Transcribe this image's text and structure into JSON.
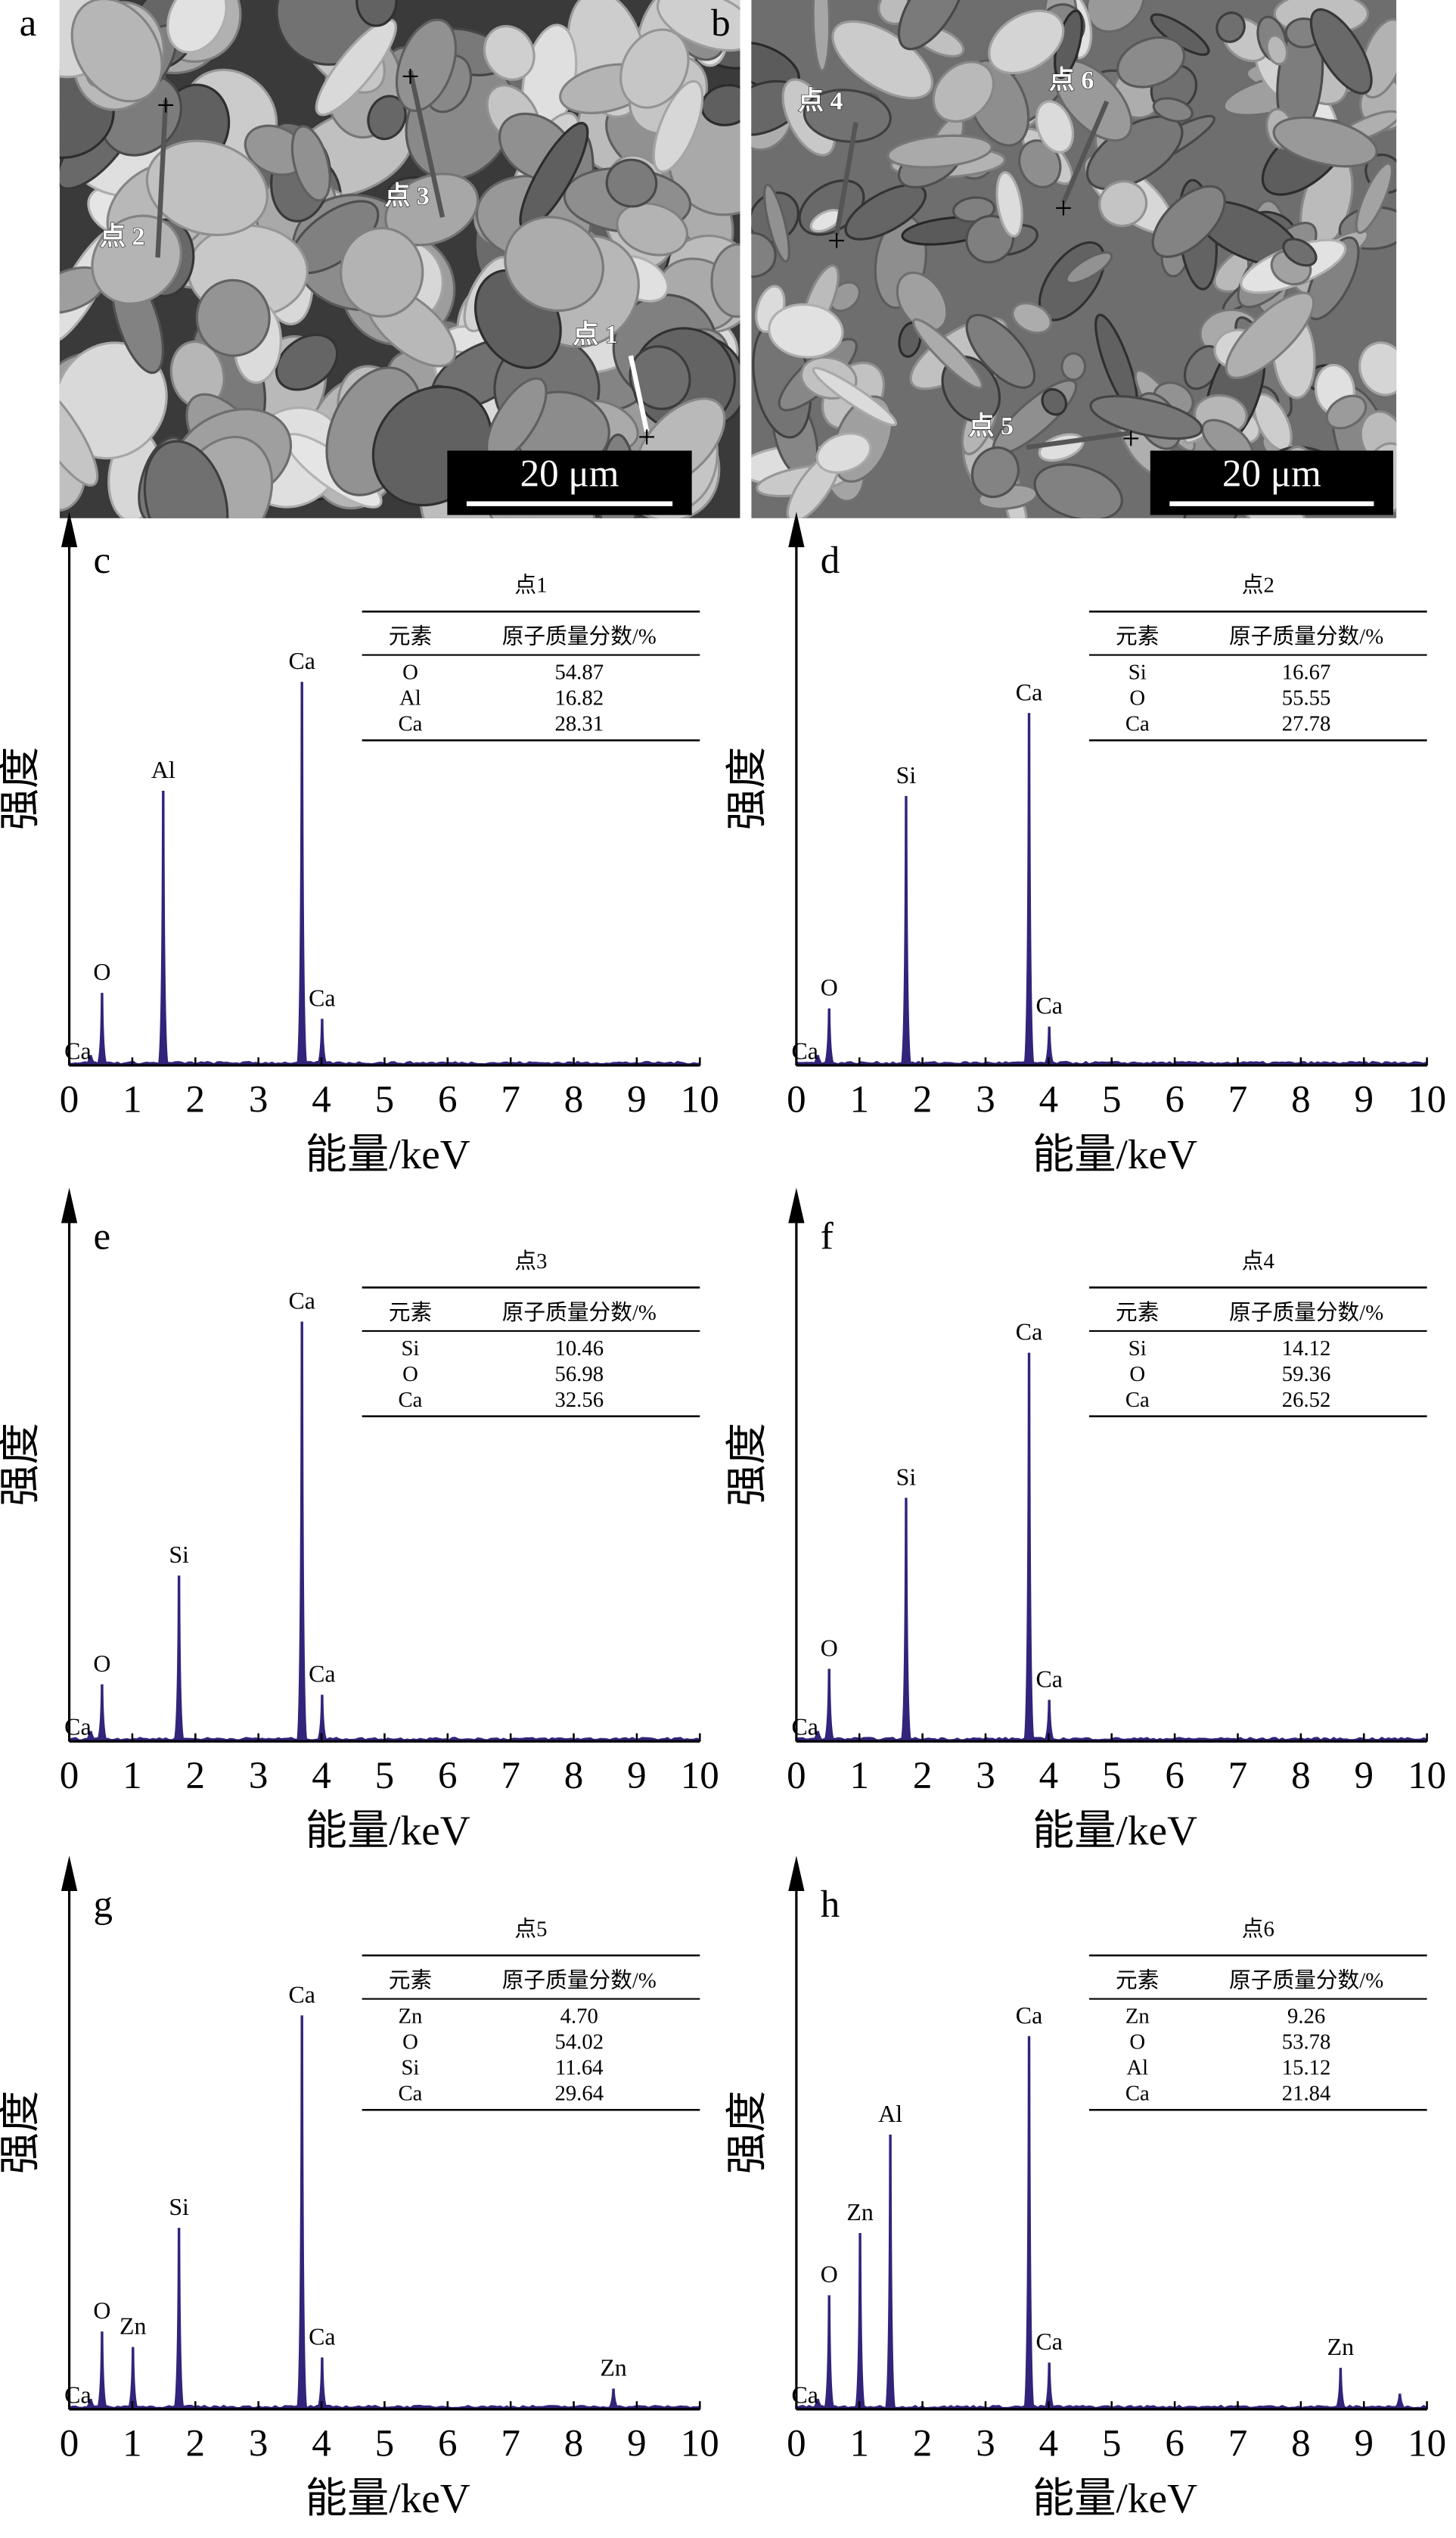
{
  "sem": [
    {
      "label": "a",
      "points": [
        "点 1",
        "点 2",
        "点 3"
      ],
      "scale_bar": "20 μm"
    },
    {
      "label": "b",
      "points": [
        "点 4",
        "点 5",
        "点 6"
      ],
      "scale_bar": "20 μm"
    }
  ],
  "chart_data": [
    {
      "type": "spectrum",
      "panel": "c",
      "xlabel": "能量/keV",
      "ylabel": "强度",
      "xlim": [
        0,
        10
      ],
      "xticks": [
        0,
        1,
        2,
        3,
        4,
        5,
        6,
        7,
        8,
        9,
        10
      ],
      "ylim": [
        0,
        1
      ],
      "color": "#33237a",
      "peaks": {
        "labels": [
          "Ca",
          "O",
          "Al",
          "Ca",
          "Ca"
        ],
        "x": [
          0.34,
          0.52,
          1.49,
          3.69,
          4.01
        ],
        "values": [
          0.02,
          0.14,
          0.53,
          0.74,
          0.09
        ]
      },
      "table": {
        "title": "点1",
        "header": [
          "元素",
          "原子质量分数/%"
        ],
        "rows": [
          [
            "O",
            "54.87"
          ],
          [
            "Al",
            "16.82"
          ],
          [
            "Ca",
            "28.31"
          ]
        ]
      }
    },
    {
      "type": "spectrum",
      "panel": "d",
      "xlabel": "能量/keV",
      "ylabel": "强度",
      "xlim": [
        0,
        10
      ],
      "xticks": [
        0,
        1,
        2,
        3,
        4,
        5,
        6,
        7,
        8,
        9,
        10
      ],
      "ylim": [
        0,
        1
      ],
      "color": "#33237a",
      "peaks": {
        "labels": [
          "Ca",
          "O",
          "Si",
          "Ca",
          "Ca"
        ],
        "x": [
          0.34,
          0.52,
          1.74,
          3.69,
          4.01
        ],
        "values": [
          0.02,
          0.11,
          0.52,
          0.68,
          0.075
        ]
      },
      "table": {
        "title": "点2",
        "header": [
          "元素",
          "原子质量分数/%"
        ],
        "rows": [
          [
            "Si",
            "16.67"
          ],
          [
            "O",
            "55.55"
          ],
          [
            "Ca",
            "27.78"
          ]
        ]
      }
    },
    {
      "type": "spectrum",
      "panel": "e",
      "xlabel": "能量/keV",
      "ylabel": "强度",
      "xlim": [
        0,
        10
      ],
      "xticks": [
        0,
        1,
        2,
        3,
        4,
        5,
        6,
        7,
        8,
        9,
        10
      ],
      "ylim": [
        0,
        1
      ],
      "color": "#33237a",
      "peaks": {
        "labels": [
          "Ca",
          "O",
          "Si",
          "Ca",
          "Ca"
        ],
        "x": [
          0.34,
          0.52,
          1.74,
          3.69,
          4.01
        ],
        "values": [
          0.02,
          0.11,
          0.32,
          0.81,
          0.09
        ]
      },
      "table": {
        "title": "点3",
        "header": [
          "元素",
          "原子质量分数/%"
        ],
        "rows": [
          [
            "Si",
            "10.46"
          ],
          [
            "O",
            "56.98"
          ],
          [
            "Ca",
            "32.56"
          ]
        ]
      }
    },
    {
      "type": "spectrum",
      "panel": "f",
      "xlabel": "能量/keV",
      "ylabel": "强度",
      "xlim": [
        0,
        10
      ],
      "xticks": [
        0,
        1,
        2,
        3,
        4,
        5,
        6,
        7,
        8,
        9,
        10
      ],
      "ylim": [
        0,
        1
      ],
      "color": "#33237a",
      "peaks": {
        "labels": [
          "Ca",
          "O",
          "Si",
          "Ca",
          "Ca"
        ],
        "x": [
          0.34,
          0.52,
          1.74,
          3.69,
          4.01
        ],
        "values": [
          0.02,
          0.14,
          0.47,
          0.75,
          0.08
        ]
      },
      "table": {
        "title": "点4",
        "header": [
          "元素",
          "原子质量分数/%"
        ],
        "rows": [
          [
            "Si",
            "14.12"
          ],
          [
            "O",
            "59.36"
          ],
          [
            "Ca",
            "26.52"
          ]
        ]
      }
    },
    {
      "type": "spectrum",
      "panel": "g",
      "xlabel": "能量/keV",
      "ylabel": "强度",
      "xlim": [
        0,
        10
      ],
      "xticks": [
        0,
        1,
        2,
        3,
        4,
        5,
        6,
        7,
        8,
        9,
        10
      ],
      "ylim": [
        0,
        1
      ],
      "color": "#33237a",
      "peaks": {
        "labels": [
          "Ca",
          "O",
          "Zn",
          "Si",
          "Ca",
          "Ca",
          "Zn"
        ],
        "x": [
          0.34,
          0.52,
          1.01,
          1.74,
          3.69,
          4.01,
          8.63
        ],
        "values": [
          0.02,
          0.15,
          0.12,
          0.35,
          0.76,
          0.1,
          0.04
        ]
      },
      "table": {
        "title": "点5",
        "header": [
          "元素",
          "原子质量分数/%"
        ],
        "rows": [
          [
            "Zn",
            "4.70"
          ],
          [
            "O",
            "54.02"
          ],
          [
            "Si",
            "11.64"
          ],
          [
            "Ca",
            "29.64"
          ]
        ]
      }
    },
    {
      "type": "spectrum",
      "panel": "h",
      "xlabel": "能量/keV",
      "ylabel": "强度",
      "xlim": [
        0,
        10
      ],
      "xticks": [
        0,
        1,
        2,
        3,
        4,
        5,
        6,
        7,
        8,
        9,
        10
      ],
      "ylim": [
        0,
        1
      ],
      "color": "#33237a",
      "peaks": {
        "labels": [
          "Ca",
          "O",
          "Zn",
          "Al",
          "Ca",
          "Ca",
          "Zn",
          null
        ],
        "x": [
          0.34,
          0.52,
          1.01,
          1.49,
          3.69,
          4.01,
          8.63,
          9.57
        ],
        "values": [
          0.02,
          0.22,
          0.34,
          0.53,
          0.72,
          0.09,
          0.08,
          0.03
        ]
      },
      "table": {
        "title": "点6",
        "header": [
          "元素",
          "原子质量分数/%"
        ],
        "rows": [
          [
            "Zn",
            "9.26"
          ],
          [
            "O",
            "53.78"
          ],
          [
            "Al",
            "15.12"
          ],
          [
            "Ca",
            "21.84"
          ]
        ]
      }
    }
  ]
}
